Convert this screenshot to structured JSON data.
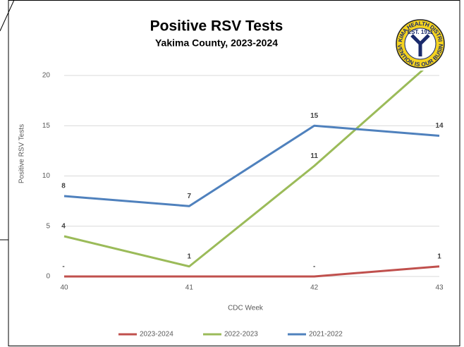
{
  "chart_data": {
    "type": "line",
    "title": "Positive RSV Tests",
    "subtitle": "Yakima County, 2023-2024",
    "x_label": "CDC Week",
    "y_label": "Positive RSV Tests",
    "categories": [
      "40",
      "41",
      "42",
      "43"
    ],
    "series": [
      {
        "name": "2023-2024",
        "color": "#c0504d",
        "values": [
          0,
          0,
          0,
          1
        ],
        "value_labels": [
          "-",
          null,
          "-",
          "1"
        ]
      },
      {
        "name": "2022-2023",
        "color": "#9bbb59",
        "values": [
          4,
          1,
          11,
          22
        ],
        "value_labels": [
          "4",
          "1",
          "11",
          null
        ]
      },
      {
        "name": "2021-2022",
        "color": "#4f81bd",
        "values": [
          8,
          7,
          15,
          14
        ],
        "value_labels": [
          "8",
          "7",
          "15",
          "14"
        ]
      }
    ],
    "ylim": [
      0,
      20
    ],
    "yticks": [
      0,
      5,
      10,
      15,
      20
    ],
    "grid": true,
    "legend": "bottom"
  },
  "logo": {
    "top": "YAKIMA HEALTH DISTRICT",
    "established": "EST. 1911",
    "bottom": "PREVENTION IS OUR BUSINESS"
  }
}
